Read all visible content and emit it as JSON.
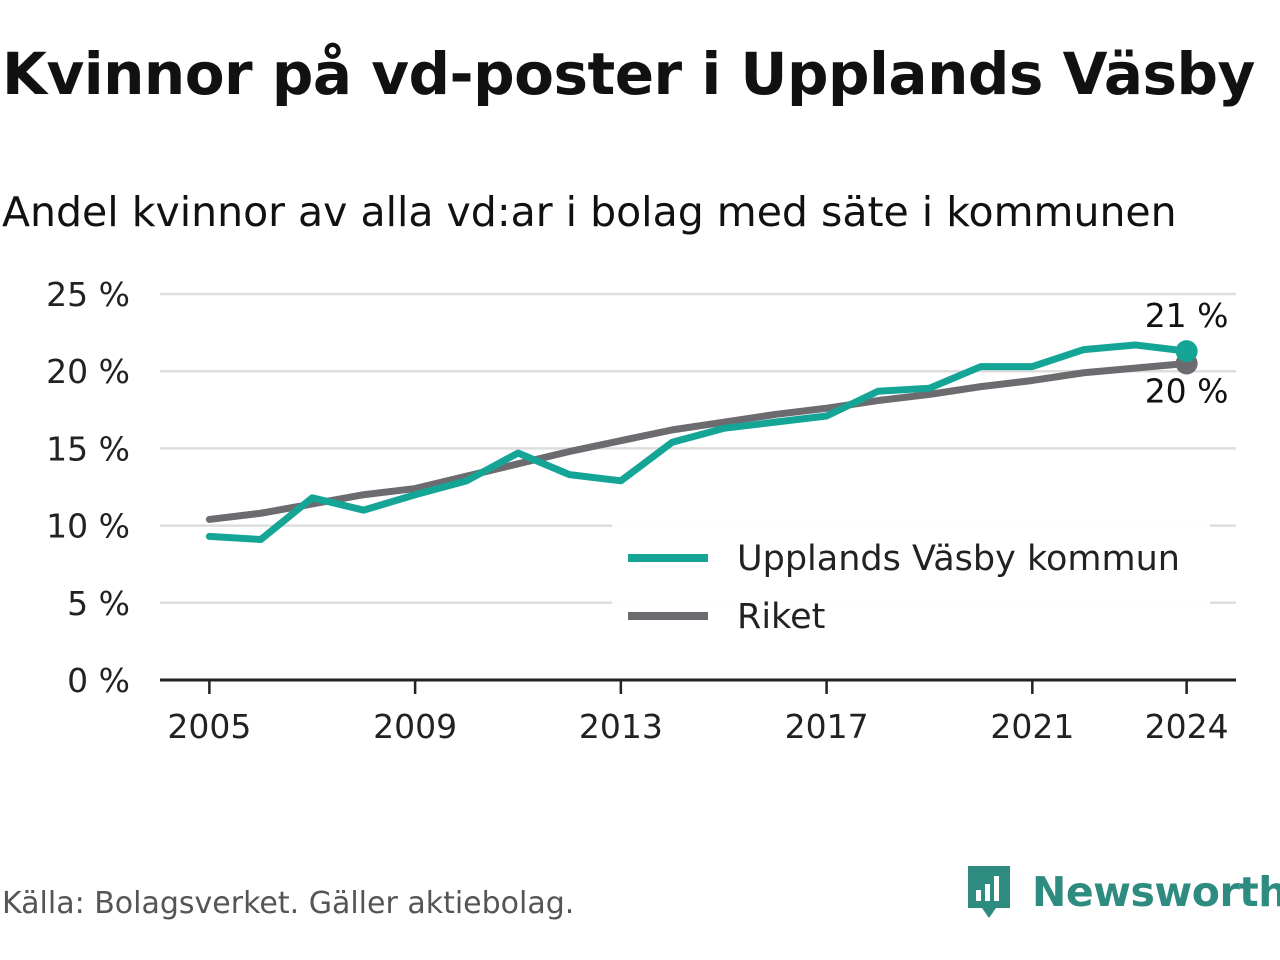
{
  "header": {
    "title": "Kvinnor på vd-poster i Upplands Väsby",
    "subtitle": "Andel kvinnor av alla vd:ar i bolag med säte i kommunen"
  },
  "chart_data": {
    "type": "line",
    "x": [
      2005,
      2006,
      2007,
      2008,
      2009,
      2010,
      2011,
      2012,
      2013,
      2014,
      2015,
      2016,
      2017,
      2018,
      2019,
      2020,
      2021,
      2022,
      2023,
      2024
    ],
    "xticks": [
      2005,
      2009,
      2013,
      2017,
      2021,
      2024
    ],
    "xtick_labels": [
      "2005",
      "2009",
      "2013",
      "2017",
      "2021",
      "2024"
    ],
    "yticks": [
      0,
      5,
      10,
      15,
      20,
      25
    ],
    "ytick_labels": [
      "0 %",
      "5 %",
      "10 %",
      "15 %",
      "20 %",
      "25 %"
    ],
    "ylim": [
      0,
      25
    ],
    "xlim": [
      2004.04,
      2024.96
    ],
    "grid": true,
    "legend_position": "lower-right",
    "series": [
      {
        "name": "Upplands Väsby kommun",
        "color": "#15a597",
        "values": [
          9.3,
          9.1,
          11.8,
          11.0,
          12.0,
          12.9,
          14.7,
          13.3,
          12.9,
          15.4,
          16.3,
          16.7,
          17.1,
          18.7,
          18.9,
          20.3,
          20.3,
          21.4,
          21.7,
          21.3
        ],
        "end_label": "21 %"
      },
      {
        "name": "Riket",
        "color": "#6c6c70",
        "values": [
          10.4,
          10.8,
          11.4,
          12.0,
          12.4,
          13.2,
          14.0,
          14.8,
          15.5,
          16.2,
          16.7,
          17.2,
          17.6,
          18.1,
          18.5,
          19.0,
          19.4,
          19.9,
          20.2,
          20.5
        ],
        "end_label": "20 %"
      }
    ]
  },
  "footer": {
    "source": "Källa: Bolagsverket. Gäller aktiebolag.",
    "brand": "Newsworthy",
    "brand_color": "#2e8b80",
    "brand_icon": "bar-chart-speech-bubble-icon"
  }
}
